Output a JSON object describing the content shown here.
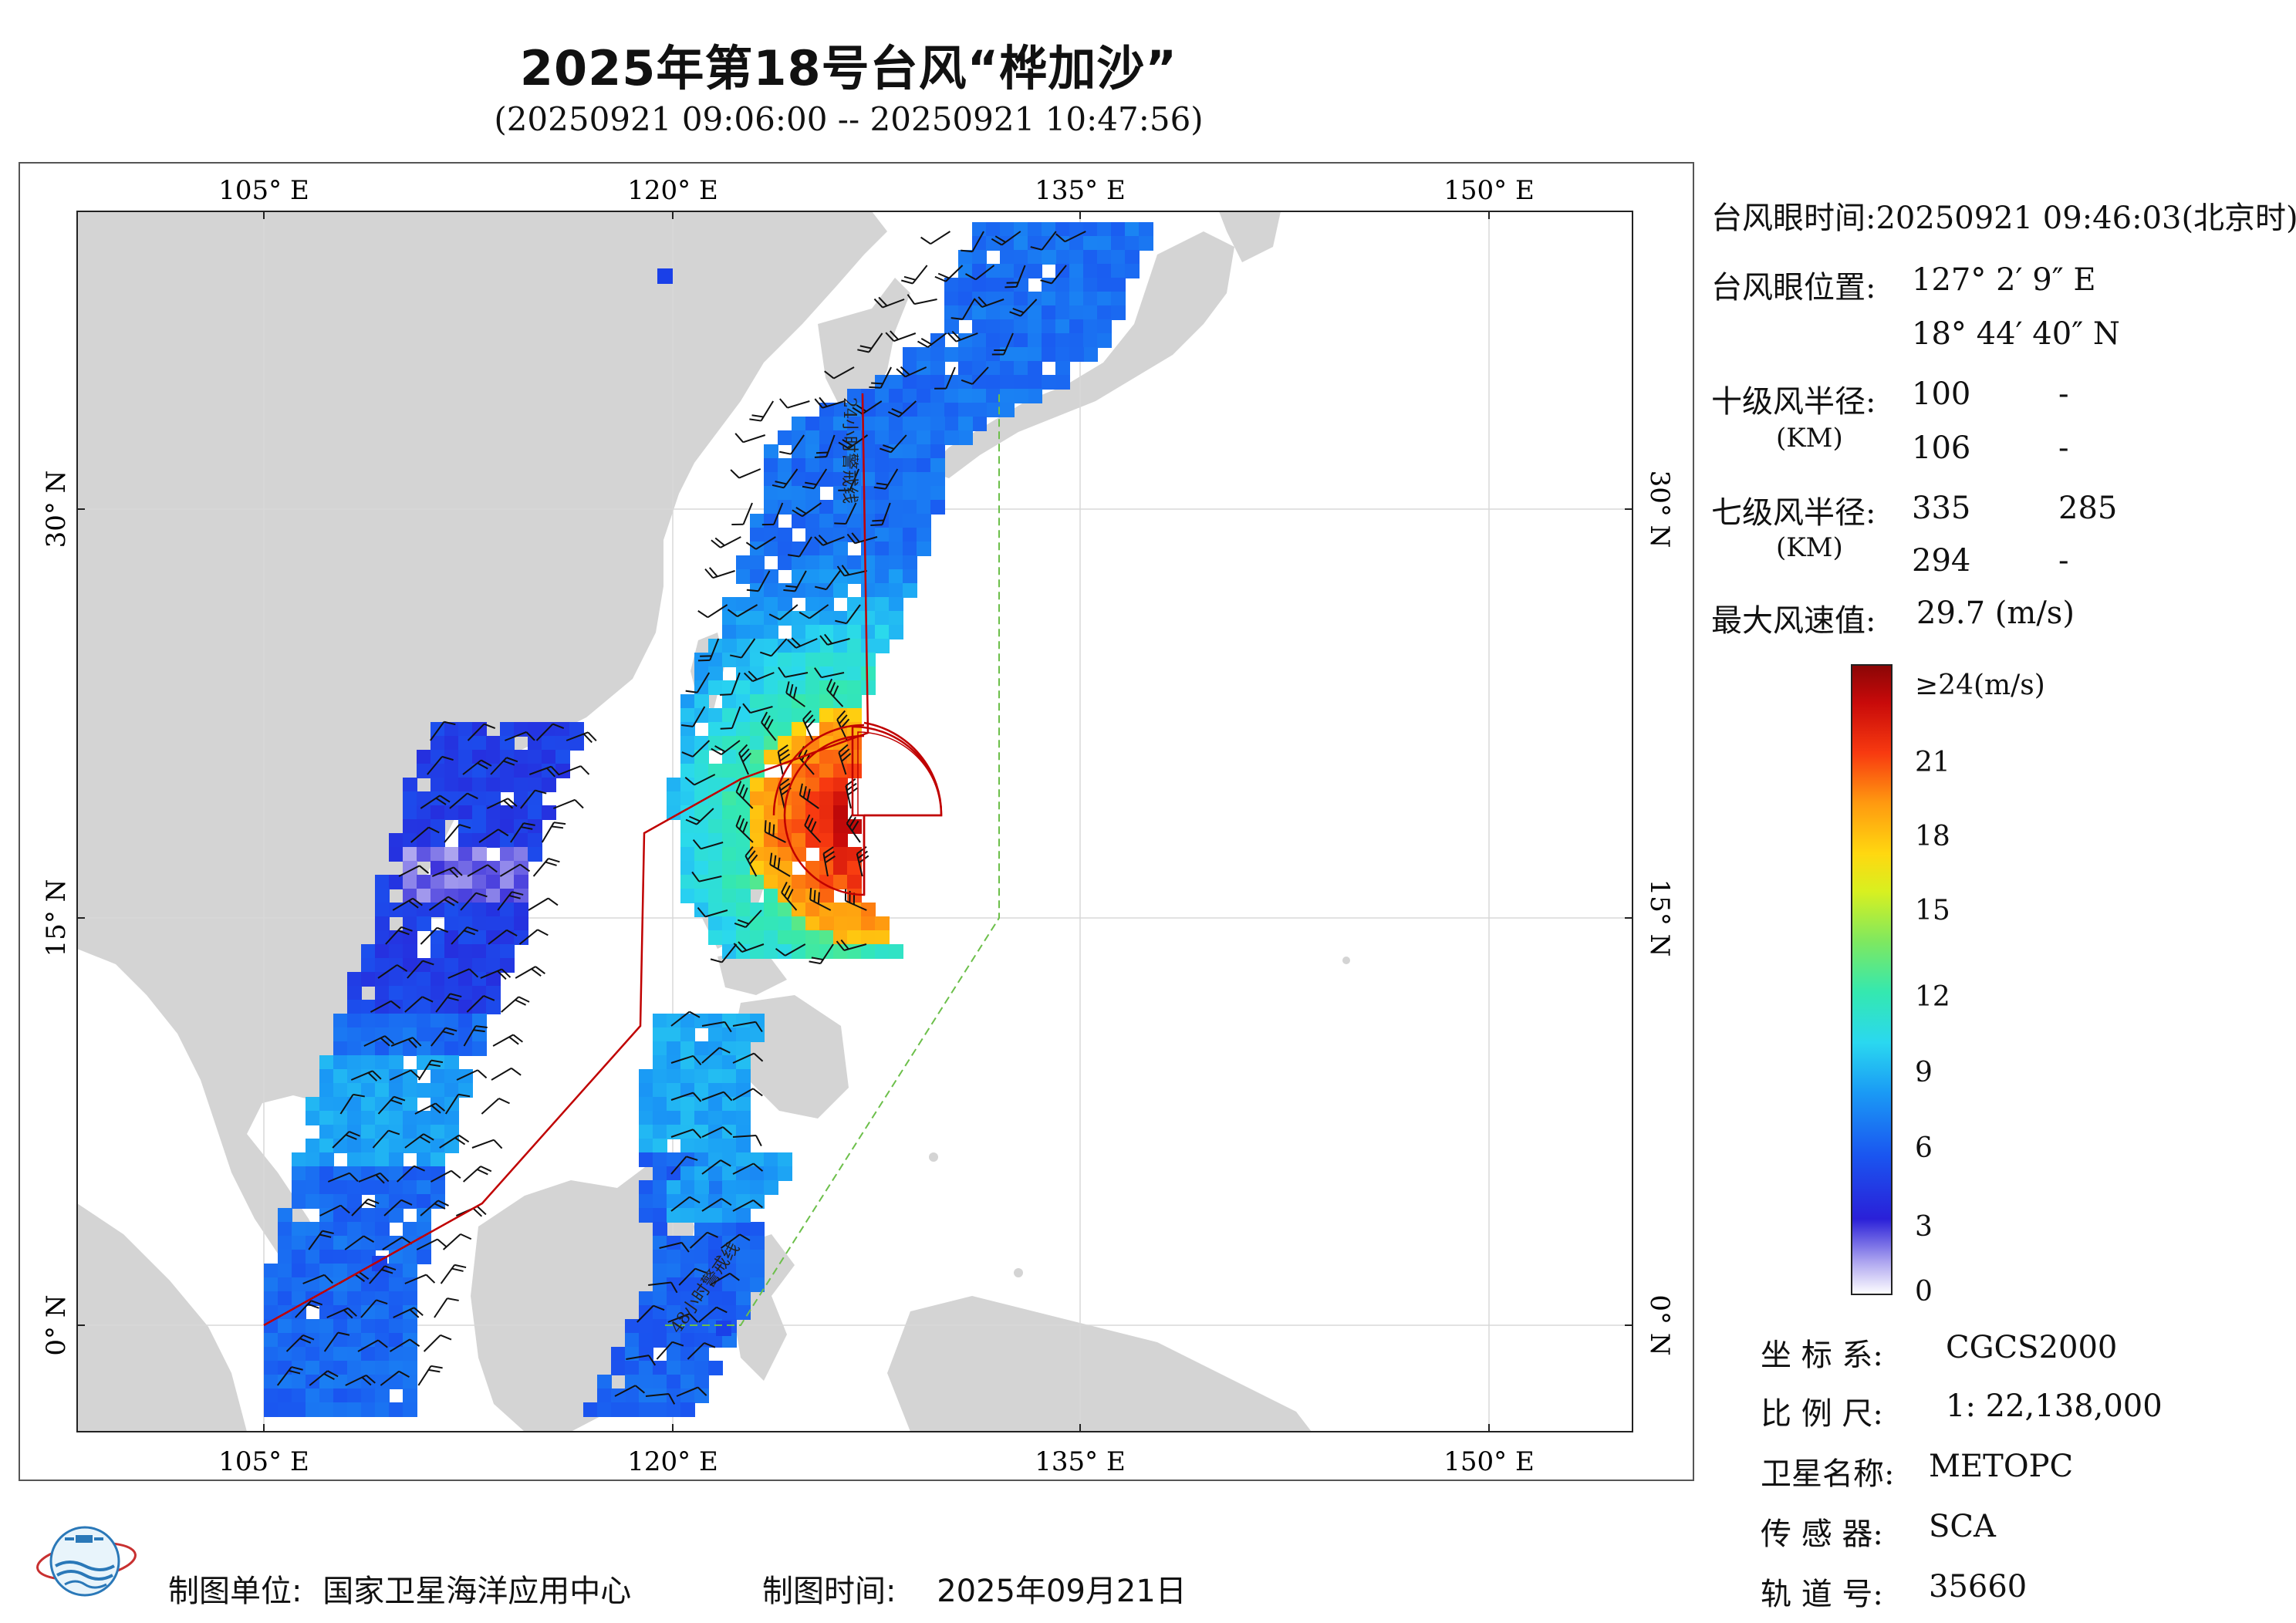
{
  "header": {
    "title": "2025年第18号台风“桦加沙”",
    "subtitle": "(20250921 09:06:00 -- 20250921 10:47:56)"
  },
  "map": {
    "lon_labels": [
      "105° E",
      "120° E",
      "135° E",
      "150° E"
    ],
    "lat_labels": [
      "30° N",
      "15° N",
      "0° N"
    ],
    "warning_line_24h": "24小时警戒线",
    "warning_line_48h": "48小时警戒线",
    "colors": {
      "land": "#d4d4d4",
      "ocean": "#ffffff",
      "warning_24h": "#c00000",
      "warning_48h": "#6cbf4a",
      "wind_radius": "#c00000"
    }
  },
  "info": {
    "eye_time_label": "台风眼时间:",
    "eye_time_value": "20250921 09:46:03(北京时)",
    "eye_pos_label": "台风眼位置:",
    "eye_lon": "127° 2′ 9″ E",
    "eye_lat": "18° 44′ 40″ N",
    "r10_label": "十级风半径:",
    "r10_unit": "(KM)",
    "r10_values": [
      "100",
      "-",
      "106",
      "-"
    ],
    "r7_label": "七级风半径:",
    "r7_unit": "(KM)",
    "r7_values": [
      "335",
      "285",
      "294",
      "-"
    ],
    "max_wind_label": "最大风速值:",
    "max_wind_value": "29.7  (m/s)"
  },
  "colorbar": {
    "labels": [
      "≥24(m/s)",
      "21",
      "18",
      "15",
      "12",
      "9",
      "6",
      "3",
      "0"
    ]
  },
  "meta": {
    "crs_label": "坐 标 系:",
    "crs_value": "CGCS2000",
    "scale_label": "比 例 尺:",
    "scale_value": "1: 22,138,000",
    "satellite_label": "卫星名称:",
    "satellite_value": "METOPC",
    "sensor_label": "传 感 器:",
    "sensor_value": "SCA",
    "orbit_label": "轨 道 号:",
    "orbit_value": "35660"
  },
  "footer": {
    "producer_label": "制图单位:",
    "producer_value": "国家卫星海洋应用中心",
    "date_label": "制图时间:",
    "date_value": "2025年09月21日"
  }
}
